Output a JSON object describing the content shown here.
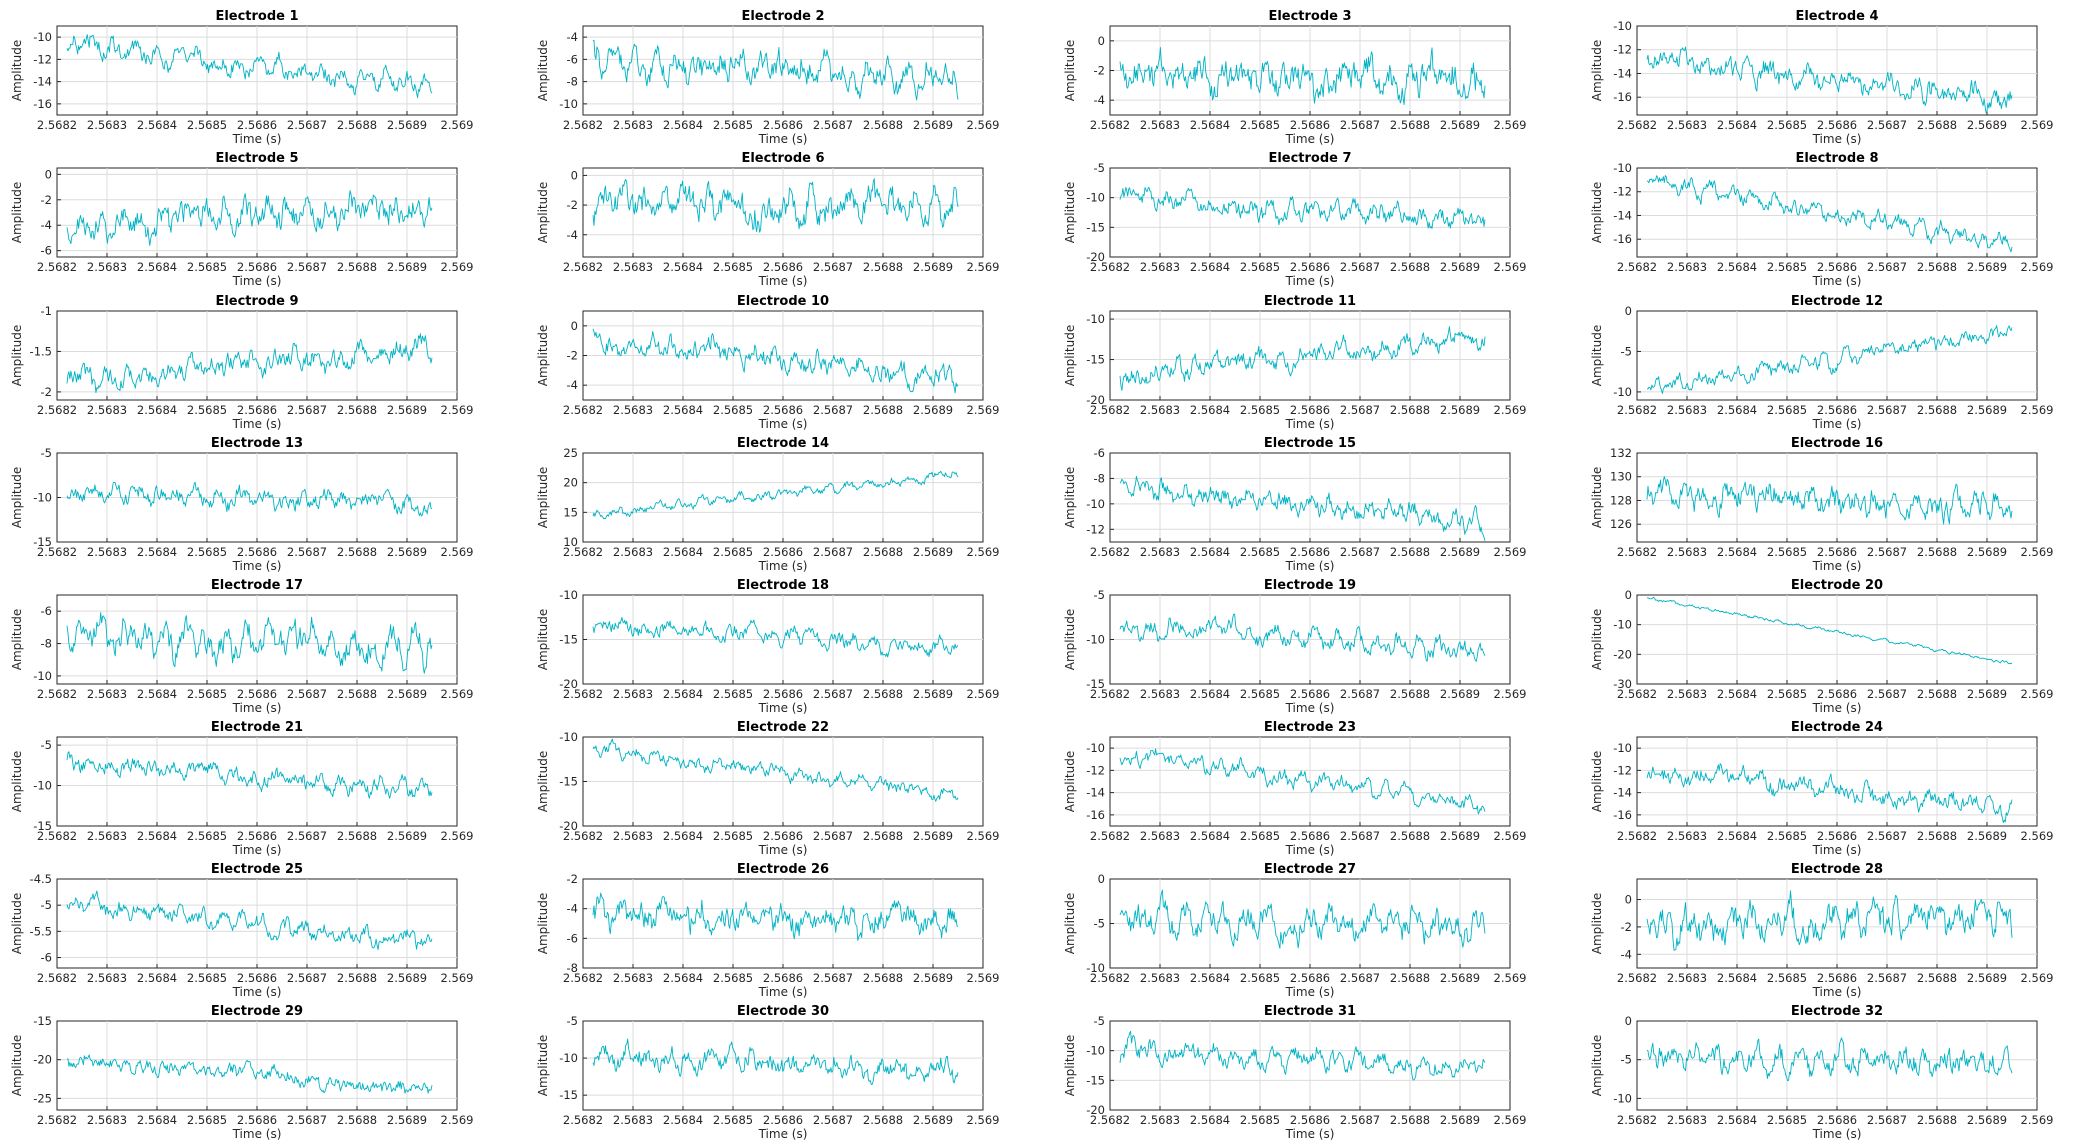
{
  "figure": {
    "line_color": "#00b3c4"
  },
  "chart_data": [
    {
      "type": "line",
      "title": "Electrode 1",
      "xlabel": "Time (s)",
      "ylabel": "Amplitude",
      "xlim": [
        2.5682,
        2.569
      ],
      "ylim": [
        -17,
        -9
      ],
      "yticks": [
        -10,
        -12,
        -14,
        -16
      ],
      "xticks": [
        "2.5682",
        "2.5683",
        "2.5684",
        "2.5685",
        "2.5686",
        "2.5687",
        "2.5688",
        "2.5689",
        "2.569"
      ],
      "start": -10.5,
      "end": -14.5,
      "noise": 1.2,
      "grid": true
    },
    {
      "type": "line",
      "title": "Electrode 2",
      "xlabel": "Time (s)",
      "ylabel": "Amplitude",
      "xlim": [
        2.5682,
        2.569
      ],
      "ylim": [
        -11,
        -3
      ],
      "yticks": [
        -4,
        -6,
        -8,
        -10
      ],
      "xticks": [
        "2.5682",
        "2.5683",
        "2.5684",
        "2.5685",
        "2.5686",
        "2.5687",
        "2.5688",
        "2.5689",
        "2.569"
      ],
      "start": -6,
      "end": -7.5,
      "noise": 1.8,
      "grid": true
    },
    {
      "type": "line",
      "title": "Electrode 3",
      "xlabel": "Time (s)",
      "ylabel": "Amplitude",
      "xlim": [
        2.5682,
        2.569
      ],
      "ylim": [
        -5,
        1
      ],
      "yticks": [
        0,
        -2,
        -4
      ],
      "xticks": [
        "2.5682",
        "2.5683",
        "2.5684",
        "2.5685",
        "2.5686",
        "2.5687",
        "2.5688",
        "2.5689",
        "2.569"
      ],
      "start": -2.5,
      "end": -2.5,
      "noise": 1.6,
      "grid": true
    },
    {
      "type": "line",
      "title": "Electrode 4",
      "xlabel": "Time (s)",
      "ylabel": "Amplitude",
      "xlim": [
        2.5682,
        2.569
      ],
      "ylim": [
        -17.5,
        -10
      ],
      "yticks": [
        -10,
        -12,
        -14,
        -16
      ],
      "xticks": [
        "2.5682",
        "2.5683",
        "2.5684",
        "2.5685",
        "2.5686",
        "2.5687",
        "2.5688",
        "2.5689",
        "2.569"
      ],
      "start": -13,
      "end": -16,
      "noise": 1.2,
      "grid": true
    },
    {
      "type": "line",
      "title": "Electrode 5",
      "xlabel": "Time (s)",
      "ylabel": "Amplitude",
      "xlim": [
        2.5682,
        2.569
      ],
      "ylim": [
        -6.5,
        0.5
      ],
      "yticks": [
        0,
        -2,
        -4,
        -6
      ],
      "xticks": [
        "2.5682",
        "2.5683",
        "2.5684",
        "2.5685",
        "2.5686",
        "2.5687",
        "2.5688",
        "2.5689",
        "2.569"
      ],
      "start": -4,
      "end": -2.5,
      "noise": 1.6,
      "grid": true
    },
    {
      "type": "line",
      "title": "Electrode 6",
      "xlabel": "Time (s)",
      "ylabel": "Amplitude",
      "xlim": [
        2.5682,
        2.569
      ],
      "ylim": [
        -5.5,
        0.5
      ],
      "yticks": [
        0,
        -2,
        -4
      ],
      "xticks": [
        "2.5682",
        "2.5683",
        "2.5684",
        "2.5685",
        "2.5686",
        "2.5687",
        "2.5688",
        "2.5689",
        "2.569"
      ],
      "start": -2,
      "end": -2.2,
      "noise": 1.5,
      "grid": true
    },
    {
      "type": "line",
      "title": "Electrode 7",
      "xlabel": "Time (s)",
      "ylabel": "Amplitude",
      "xlim": [
        2.5682,
        2.569
      ],
      "ylim": [
        -20,
        -5
      ],
      "yticks": [
        -5,
        -10,
        -15,
        -20
      ],
      "xticks": [
        "2.5682",
        "2.5683",
        "2.5684",
        "2.5685",
        "2.5686",
        "2.5687",
        "2.5688",
        "2.5689",
        "2.569"
      ],
      "start": -10,
      "end": -14,
      "noise": 2.2,
      "grid": true
    },
    {
      "type": "line",
      "title": "Electrode 8",
      "xlabel": "Time (s)",
      "ylabel": "Amplitude",
      "xlim": [
        2.5682,
        2.569
      ],
      "ylim": [
        -17.5,
        -10
      ],
      "yticks": [
        -10,
        -12,
        -14,
        -16
      ],
      "xticks": [
        "2.5682",
        "2.5683",
        "2.5684",
        "2.5685",
        "2.5686",
        "2.5687",
        "2.5688",
        "2.5689",
        "2.569"
      ],
      "start": -11,
      "end": -16.5,
      "noise": 0.9,
      "grid": true
    },
    {
      "type": "line",
      "title": "Electrode 9",
      "xlabel": "Time (s)",
      "ylabel": "Amplitude",
      "xlim": [
        2.5682,
        2.569
      ],
      "ylim": [
        -2.1,
        -1
      ],
      "yticks": [
        -1,
        -1.5,
        -2
      ],
      "xticks": [
        "2.5682",
        "2.5683",
        "2.5684",
        "2.5685",
        "2.5686",
        "2.5687",
        "2.5688",
        "2.5689",
        "2.569"
      ],
      "start": -1.85,
      "end": -1.45,
      "noise": 0.18,
      "grid": true
    },
    {
      "type": "line",
      "title": "Electrode 10",
      "xlabel": "Time (s)",
      "ylabel": "Amplitude",
      "xlim": [
        2.5682,
        2.569
      ],
      "ylim": [
        -5,
        1
      ],
      "yticks": [
        0,
        -2,
        -4
      ],
      "xticks": [
        "2.5682",
        "2.5683",
        "2.5684",
        "2.5685",
        "2.5686",
        "2.5687",
        "2.5688",
        "2.5689",
        "2.569"
      ],
      "start": -0.8,
      "end": -3.6,
      "noise": 1.0,
      "grid": true
    },
    {
      "type": "line",
      "title": "Electrode 11",
      "xlabel": "Time (s)",
      "ylabel": "Amplitude",
      "xlim": [
        2.5682,
        2.569
      ],
      "ylim": [
        -20,
        -9
      ],
      "yticks": [
        -10,
        -15,
        -20
      ],
      "xticks": [
        "2.5682",
        "2.5683",
        "2.5684",
        "2.5685",
        "2.5686",
        "2.5687",
        "2.5688",
        "2.5689",
        "2.569"
      ],
      "start": -17,
      "end": -12,
      "noise": 1.6,
      "grid": true
    },
    {
      "type": "line",
      "title": "Electrode 12",
      "xlabel": "Time (s)",
      "ylabel": "Amplitude",
      "xlim": [
        2.5682,
        2.569
      ],
      "ylim": [
        -11,
        0
      ],
      "yticks": [
        0,
        -5,
        -10
      ],
      "xticks": [
        "2.5682",
        "2.5683",
        "2.5684",
        "2.5685",
        "2.5686",
        "2.5687",
        "2.5688",
        "2.5689",
        "2.569"
      ],
      "start": -9.5,
      "end": -2.5,
      "noise": 1.3,
      "grid": true
    },
    {
      "type": "line",
      "title": "Electrode 13",
      "xlabel": "Time (s)",
      "ylabel": "Amplitude",
      "xlim": [
        2.5682,
        2.569
      ],
      "ylim": [
        -15,
        -5
      ],
      "yticks": [
        -5,
        -10,
        -15
      ],
      "xticks": [
        "2.5682",
        "2.5683",
        "2.5684",
        "2.5685",
        "2.5686",
        "2.5687",
        "2.5688",
        "2.5689",
        "2.569"
      ],
      "start": -9.5,
      "end": -11,
      "noise": 1.4,
      "grid": true
    },
    {
      "type": "line",
      "title": "Electrode 14",
      "xlabel": "Time (s)",
      "ylabel": "Amplitude",
      "xlim": [
        2.5682,
        2.569
      ],
      "ylim": [
        10,
        25
      ],
      "yticks": [
        25,
        20,
        15,
        10
      ],
      "xticks": [
        "2.5682",
        "2.5683",
        "2.5684",
        "2.5685",
        "2.5686",
        "2.5687",
        "2.5688",
        "2.5689",
        "2.569"
      ],
      "start": 14.5,
      "end": 21.5,
      "noise": 1.0,
      "grid": true
    },
    {
      "type": "line",
      "title": "Electrode 15",
      "xlabel": "Time (s)",
      "ylabel": "Amplitude",
      "xlim": [
        2.5682,
        2.569
      ],
      "ylim": [
        -13,
        -6
      ],
      "yticks": [
        -6,
        -8,
        -10,
        -12
      ],
      "xticks": [
        "2.5682",
        "2.5683",
        "2.5684",
        "2.5685",
        "2.5686",
        "2.5687",
        "2.5688",
        "2.5689",
        "2.569"
      ],
      "start": -8.5,
      "end": -11.5,
      "noise": 1.1,
      "grid": true
    },
    {
      "type": "line",
      "title": "Electrode 16",
      "xlabel": "Time (s)",
      "ylabel": "Amplitude",
      "xlim": [
        2.5682,
        2.569
      ],
      "ylim": [
        124.5,
        132
      ],
      "yticks": [
        132,
        130,
        128,
        126
      ],
      "xticks": [
        "2.5682",
        "2.5683",
        "2.5684",
        "2.5685",
        "2.5686",
        "2.5687",
        "2.5688",
        "2.5689",
        "2.569"
      ],
      "start": 128.5,
      "end": 127,
      "noise": 1.5,
      "grid": true
    },
    {
      "type": "line",
      "title": "Electrode 17",
      "xlabel": "Time (s)",
      "ylabel": "Amplitude",
      "xlim": [
        2.5682,
        2.569
      ],
      "ylim": [
        -10.5,
        -5
      ],
      "yticks": [
        -6,
        -8,
        -10
      ],
      "xticks": [
        "2.5682",
        "2.5683",
        "2.5684",
        "2.5685",
        "2.5686",
        "2.5687",
        "2.5688",
        "2.5689",
        "2.569"
      ],
      "start": -7.5,
      "end": -8.3,
      "noise": 1.3,
      "grid": true
    },
    {
      "type": "line",
      "title": "Electrode 18",
      "xlabel": "Time (s)",
      "ylabel": "Amplitude",
      "xlim": [
        2.5682,
        2.569
      ],
      "ylim": [
        -20,
        -10
      ],
      "yticks": [
        -10,
        -15,
        -20
      ],
      "xticks": [
        "2.5682",
        "2.5683",
        "2.5684",
        "2.5685",
        "2.5686",
        "2.5687",
        "2.5688",
        "2.5689",
        "2.569"
      ],
      "start": -13.5,
      "end": -16,
      "noise": 1.2,
      "grid": true
    },
    {
      "type": "line",
      "title": "Electrode 19",
      "xlabel": "Time (s)",
      "ylabel": "Amplitude",
      "xlim": [
        2.5682,
        2.569
      ],
      "ylim": [
        -15,
        -5
      ],
      "yticks": [
        -5,
        -10,
        -15
      ],
      "xticks": [
        "2.5682",
        "2.5683",
        "2.5684",
        "2.5685",
        "2.5686",
        "2.5687",
        "2.5688",
        "2.5689",
        "2.569"
      ],
      "start": -8.5,
      "end": -11,
      "noise": 1.4,
      "grid": true
    },
    {
      "type": "line",
      "title": "Electrode 20",
      "xlabel": "Time (s)",
      "ylabel": "Amplitude",
      "xlim": [
        2.5682,
        2.569
      ],
      "ylim": [
        -30,
        0
      ],
      "yticks": [
        0,
        -10,
        -20,
        -30
      ],
      "xticks": [
        "2.5682",
        "2.5683",
        "2.5684",
        "2.5685",
        "2.5686",
        "2.5687",
        "2.5688",
        "2.5689",
        "2.569"
      ],
      "start": -1,
      "end": -23,
      "noise": 0.7,
      "grid": true
    },
    {
      "type": "line",
      "title": "Electrode 21",
      "xlabel": "Time (s)",
      "ylabel": "Amplitude",
      "xlim": [
        2.5682,
        2.569
      ],
      "ylim": [
        -15,
        -4
      ],
      "yticks": [
        -5,
        -10,
        -15
      ],
      "xticks": [
        "2.5682",
        "2.5683",
        "2.5684",
        "2.5685",
        "2.5686",
        "2.5687",
        "2.5688",
        "2.5689",
        "2.569"
      ],
      "start": -7,
      "end": -10.5,
      "noise": 1.4,
      "grid": true
    },
    {
      "type": "line",
      "title": "Electrode 22",
      "xlabel": "Time (s)",
      "ylabel": "Amplitude",
      "xlim": [
        2.5682,
        2.569
      ],
      "ylim": [
        -20,
        -10
      ],
      "yticks": [
        -10,
        -15,
        -20
      ],
      "xticks": [
        "2.5682",
        "2.5683",
        "2.5684",
        "2.5685",
        "2.5686",
        "2.5687",
        "2.5688",
        "2.5689",
        "2.569"
      ],
      "start": -11.5,
      "end": -16.5,
      "noise": 1.0,
      "grid": true
    },
    {
      "type": "line",
      "title": "Electrode 23",
      "xlabel": "Time (s)",
      "ylabel": "Amplitude",
      "xlim": [
        2.5682,
        2.569
      ],
      "ylim": [
        -17,
        -9
      ],
      "yticks": [
        -10,
        -12,
        -14,
        -16
      ],
      "xticks": [
        "2.5682",
        "2.5683",
        "2.5684",
        "2.5685",
        "2.5686",
        "2.5687",
        "2.5688",
        "2.5689",
        "2.569"
      ],
      "start": -10.5,
      "end": -15,
      "noise": 0.9,
      "grid": true
    },
    {
      "type": "line",
      "title": "Electrode 24",
      "xlabel": "Time (s)",
      "ylabel": "Amplitude",
      "xlim": [
        2.5682,
        2.569
      ],
      "ylim": [
        -17,
        -9
      ],
      "yticks": [
        -10,
        -12,
        -14,
        -16
      ],
      "xticks": [
        "2.5682",
        "2.5683",
        "2.5684",
        "2.5685",
        "2.5686",
        "2.5687",
        "2.5688",
        "2.5689",
        "2.569"
      ],
      "start": -12,
      "end": -15.5,
      "noise": 1.1,
      "grid": true
    },
    {
      "type": "line",
      "title": "Electrode 25",
      "xlabel": "Time (s)",
      "ylabel": "Amplitude",
      "xlim": [
        2.5682,
        2.569
      ],
      "ylim": [
        -6.2,
        -4.5
      ],
      "yticks": [
        -4.5,
        -5,
        -5.5,
        -6
      ],
      "xticks": [
        "2.5682",
        "2.5683",
        "2.5684",
        "2.5685",
        "2.5686",
        "2.5687",
        "2.5688",
        "2.5689",
        "2.569"
      ],
      "start": -5,
      "end": -5.7,
      "noise": 0.22,
      "grid": true
    },
    {
      "type": "line",
      "title": "Electrode 26",
      "xlabel": "Time (s)",
      "ylabel": "Amplitude",
      "xlim": [
        2.5682,
        2.569
      ],
      "ylim": [
        -8,
        -2
      ],
      "yticks": [
        -2,
        -4,
        -6,
        -8
      ],
      "xticks": [
        "2.5682",
        "2.5683",
        "2.5684",
        "2.5685",
        "2.5686",
        "2.5687",
        "2.5688",
        "2.5689",
        "2.569"
      ],
      "start": -4.5,
      "end": -4.8,
      "noise": 1.3,
      "grid": true
    },
    {
      "type": "line",
      "title": "Electrode 27",
      "xlabel": "Time (s)",
      "ylabel": "Amplitude",
      "xlim": [
        2.5682,
        2.569
      ],
      "ylim": [
        -10,
        0
      ],
      "yticks": [
        0,
        -5,
        -10
      ],
      "xticks": [
        "2.5682",
        "2.5683",
        "2.5684",
        "2.5685",
        "2.5686",
        "2.5687",
        "2.5688",
        "2.5689",
        "2.569"
      ],
      "start": -5,
      "end": -5,
      "noise": 2.2,
      "grid": true
    },
    {
      "type": "line",
      "title": "Electrode 28",
      "xlabel": "Time (s)",
      "ylabel": "Amplitude",
      "xlim": [
        2.5682,
        2.569
      ],
      "ylim": [
        -5,
        1.5
      ],
      "yticks": [
        0,
        -2,
        -4
      ],
      "xticks": [
        "2.5682",
        "2.5683",
        "2.5684",
        "2.5685",
        "2.5686",
        "2.5687",
        "2.5688",
        "2.5689",
        "2.569"
      ],
      "start": -1.8,
      "end": -1.5,
      "noise": 1.7,
      "grid": true
    },
    {
      "type": "line",
      "title": "Electrode 29",
      "xlabel": "Time (s)",
      "ylabel": "Amplitude",
      "xlim": [
        2.5682,
        2.569
      ],
      "ylim": [
        -26.5,
        -15
      ],
      "yticks": [
        -15,
        -20,
        -25
      ],
      "xticks": [
        "2.5682",
        "2.5683",
        "2.5684",
        "2.5685",
        "2.5686",
        "2.5687",
        "2.5688",
        "2.5689",
        "2.569"
      ],
      "start": -20,
      "end": -24,
      "noise": 1.3,
      "grid": true
    },
    {
      "type": "line",
      "title": "Electrode 30",
      "xlabel": "Time (s)",
      "ylabel": "Amplitude",
      "xlim": [
        2.5682,
        2.569
      ],
      "ylim": [
        -17,
        -5
      ],
      "yticks": [
        -5,
        -10,
        -15
      ],
      "xticks": [
        "2.5682",
        "2.5683",
        "2.5684",
        "2.5685",
        "2.5686",
        "2.5687",
        "2.5688",
        "2.5689",
        "2.569"
      ],
      "start": -9.5,
      "end": -12,
      "noise": 2.0,
      "grid": true
    },
    {
      "type": "line",
      "title": "Electrode 31",
      "xlabel": "Time (s)",
      "ylabel": "Amplitude",
      "xlim": [
        2.5682,
        2.569
      ],
      "ylim": [
        -20,
        -5
      ],
      "yticks": [
        -5,
        -10,
        -15,
        -20
      ],
      "xticks": [
        "2.5682",
        "2.5683",
        "2.5684",
        "2.5685",
        "2.5686",
        "2.5687",
        "2.5688",
        "2.5689",
        "2.569"
      ],
      "start": -10,
      "end": -13,
      "noise": 2.2,
      "grid": true
    },
    {
      "type": "line",
      "title": "Electrode 32",
      "xlabel": "Time (s)",
      "ylabel": "Amplitude",
      "xlim": [
        2.5682,
        2.569
      ],
      "ylim": [
        -11.5,
        0
      ],
      "yticks": [
        0,
        -5,
        -10
      ],
      "xticks": [
        "2.5682",
        "2.5683",
        "2.5684",
        "2.5685",
        "2.5686",
        "2.5687",
        "2.5688",
        "2.5689",
        "2.569"
      ],
      "start": -4.5,
      "end": -5.5,
      "noise": 2.2,
      "grid": true
    }
  ]
}
